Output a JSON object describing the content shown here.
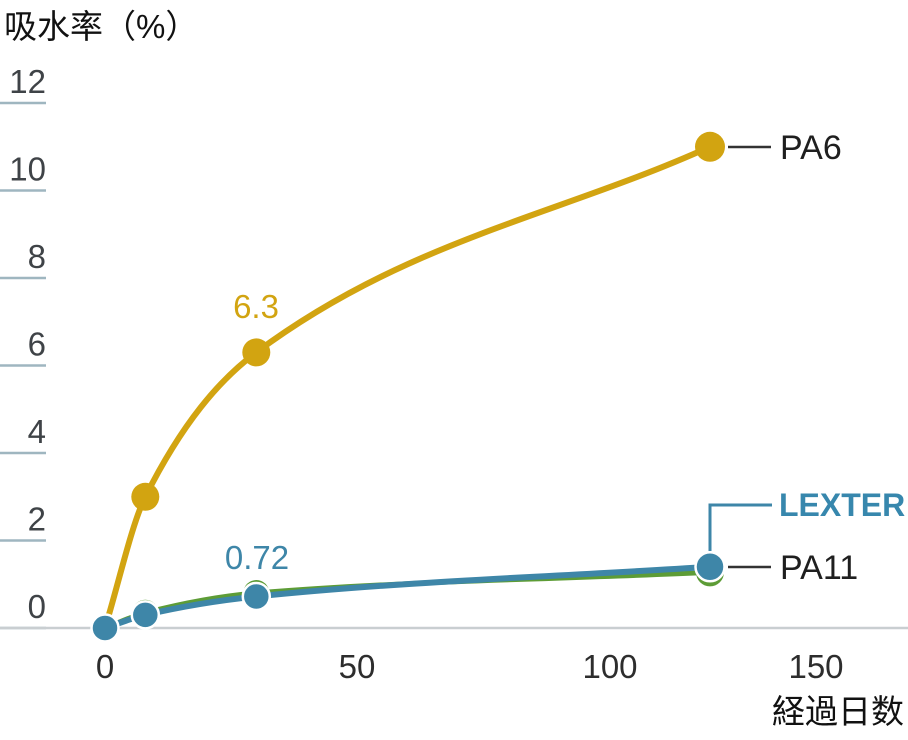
{
  "chart_data": {
    "type": "line",
    "title": "吸水率（%）",
    "xlabel": "経過日数",
    "x_ticks": [
      0,
      50,
      100,
      150
    ],
    "y_ticks": [
      12,
      10,
      8,
      6,
      4,
      2,
      0
    ],
    "ylim": [
      0,
      12
    ],
    "xlim": [
      0,
      159
    ],
    "grid": "short-left-tick-marks-only",
    "legend_position": "labels-at-line-ends",
    "x_days": [
      0,
      8,
      30,
      120
    ],
    "series": [
      {
        "name": "PA6",
        "label": "PA6",
        "color": "#d2a411",
        "values": [
          0,
          3.0,
          6.3,
          11.0
        ]
      },
      {
        "name": "PA11",
        "label": "PA11",
        "color": "#5d9c36",
        "values": [
          0,
          0.35,
          0.8,
          1.27
        ]
      },
      {
        "name": "LEXTER",
        "label": "LEXTER",
        "color": "#3e86a8",
        "values": [
          0,
          0.3,
          0.72,
          1.4
        ]
      }
    ],
    "annotations": [
      {
        "text": "6.3",
        "series": "PA6",
        "x_day": 30,
        "color": "#d2a411"
      },
      {
        "text": "0.72",
        "series": "LEXTER",
        "x_day": 30,
        "color": "#3e86a8"
      }
    ]
  },
  "colors": {
    "background": "#ffffff",
    "axis_line": "#c9ced1",
    "y_tick_line": "#9fb6c0",
    "tick_text": "#3f4347",
    "x_tick_text": "#2d2d2d",
    "black_label": "#1f1f1f",
    "leader_line": "#333333",
    "brand_text": "#3787ad"
  }
}
